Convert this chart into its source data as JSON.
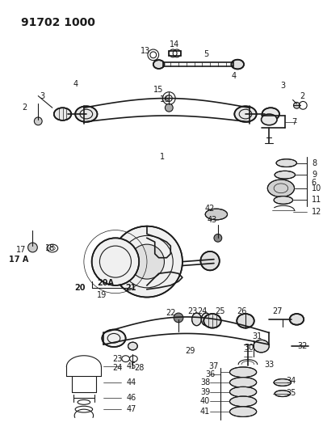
{
  "title": "91702 1000",
  "bg_color": "#ffffff",
  "line_color": "#1a1a1a",
  "title_fontsize": 10,
  "label_fontsize": 7,
  "fig_width": 4.0,
  "fig_height": 5.33,
  "dpi": 100
}
